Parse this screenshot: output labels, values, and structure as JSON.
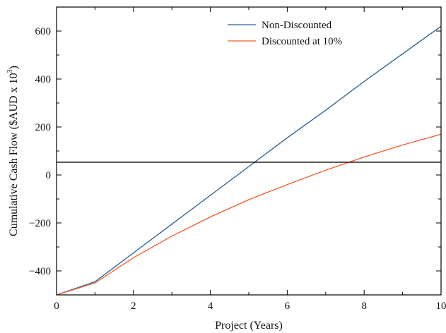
{
  "chart_data": {
    "type": "line",
    "title": "",
    "xlabel": "Project (Years)",
    "ylabel_main": "Cumulative Cash Flow ($AUD x 10",
    "ylabel_sup": "3",
    "ylabel_close": ")",
    "xlim": [
      0,
      10
    ],
    "ylim": [
      -500,
      700
    ],
    "x_ticks": [
      0,
      2,
      4,
      6,
      8,
      10
    ],
    "x_tick_labels": [
      "0",
      "2",
      "4",
      "6",
      "8",
      "10"
    ],
    "x_minor_ticks": [
      1,
      3,
      5,
      7,
      9
    ],
    "y_ticks": [
      -400,
      -200,
      0,
      200,
      400,
      600
    ],
    "y_tick_labels": [
      "−400",
      "−200",
      "0",
      "200",
      "400",
      "600"
    ],
    "y_minor_ticks": [
      -300,
      -100,
      100,
      300,
      500
    ],
    "grid": false,
    "legend_position": "top-center",
    "series": [
      {
        "name": "Non-Discounted",
        "color": "#2b5f8e",
        "x": [
          0,
          1,
          2,
          3,
          4,
          5,
          6,
          7,
          8,
          9,
          10
        ],
        "y": [
          -500,
          -445,
          -325,
          -205,
          -85,
          35,
          155,
          270,
          390,
          505,
          620
        ]
      },
      {
        "name": "Discounted at 10%",
        "color": "#f05a28",
        "x": [
          0,
          1,
          2,
          3,
          4,
          5,
          6,
          7,
          8,
          9,
          10
        ],
        "y": [
          -500,
          -450,
          -345,
          -255,
          -175,
          -103,
          -40,
          20,
          75,
          125,
          170
        ]
      }
    ],
    "hlines": [
      {
        "y": 53,
        "color": "#000000"
      }
    ]
  }
}
